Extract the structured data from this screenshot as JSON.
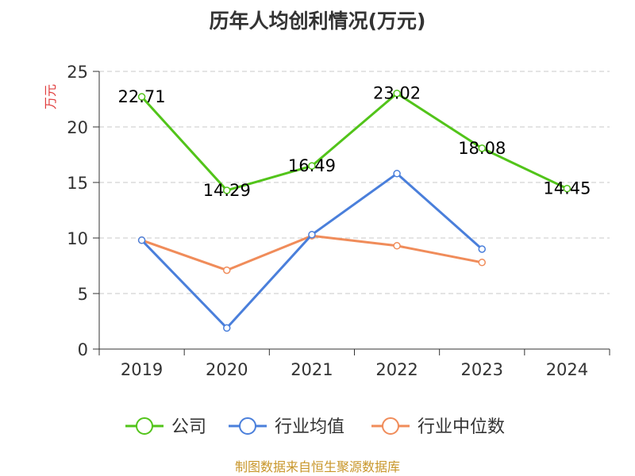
{
  "chart_data": {
    "type": "line",
    "title": "历年人均创利情况(万元)",
    "ylabel": "万元",
    "xlabel": "",
    "categories": [
      "2019",
      "2020",
      "2021",
      "2022",
      "2023",
      "2024"
    ],
    "ylim": [
      0,
      25
    ],
    "yticks": [
      "0",
      "5",
      "10",
      "15",
      "20",
      "25"
    ],
    "grid": true,
    "legend_position": "bottom",
    "series": [
      {
        "name": "公司",
        "color": "#52c41a",
        "values": [
          22.71,
          14.29,
          16.49,
          23.02,
          18.08,
          14.45
        ],
        "labels": [
          "22.71",
          "14.29",
          "16.49",
          "23.02",
          "18.08",
          "14.45"
        ]
      },
      {
        "name": "行业均值",
        "color": "#4a7fdb",
        "values": [
          9.8,
          1.9,
          10.3,
          15.8,
          9.0,
          null
        ]
      },
      {
        "name": "行业中位数",
        "color": "#f08c5a",
        "values": [
          9.8,
          7.1,
          10.2,
          9.3,
          7.8,
          null
        ]
      }
    ]
  },
  "footer": {
    "source": "制图数据来自恒生聚源数据库"
  }
}
